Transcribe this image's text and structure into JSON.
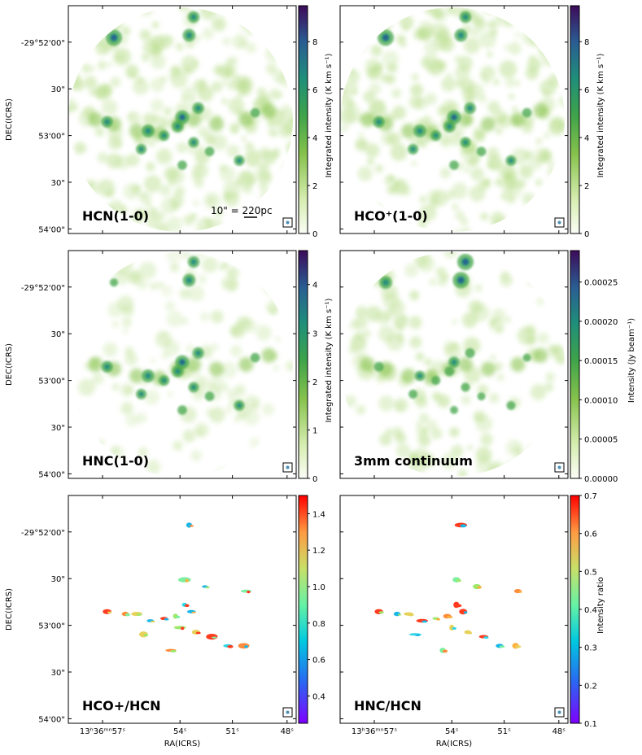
{
  "chart_data": [
    {
      "type": "heatmap",
      "panel_label": "HCN(1-0)",
      "scalebar_label": "10\" = 220pc",
      "colormap": "green-blue-purple",
      "colorbar": {
        "label": "Integrated intensity (K km s⁻¹)",
        "range": [
          0,
          9.5
        ],
        "ticks": [
          "0",
          "2",
          "4",
          "6",
          "8"
        ],
        "tick_values": [
          0,
          2,
          4,
          6,
          8
        ]
      },
      "y_ticks": [
        "-29°52'00\"",
        "30\"",
        "53'00\"",
        "30\"",
        "54'00\""
      ],
      "ylabel": "DEC(ICRS)",
      "x_ticks": [],
      "xlabel": ""
    },
    {
      "type": "heatmap",
      "panel_label": "HCO⁺(1-0)",
      "colormap": "green-blue-purple",
      "colorbar": {
        "label": "Integrated intensity (K km s⁻¹)",
        "range": [
          0,
          9.5
        ],
        "ticks": [
          "0",
          "2",
          "4",
          "6",
          "8"
        ],
        "tick_values": [
          0,
          2,
          4,
          6,
          8
        ]
      },
      "y_ticks": [],
      "ylabel": "",
      "x_ticks": [],
      "xlabel": ""
    },
    {
      "type": "heatmap",
      "panel_label": "HNC(1-0)",
      "colormap": "green-blue-purple",
      "colorbar": {
        "label": "Integrated intensity (K km s⁻¹)",
        "range": [
          0,
          4.7
        ],
        "ticks": [
          "0",
          "1",
          "2",
          "3",
          "4"
        ],
        "tick_values": [
          0,
          1,
          2,
          3,
          4
        ]
      },
      "y_ticks": [
        "-29°52'00\"",
        "30\"",
        "53'00\"",
        "30\"",
        "54'00\""
      ],
      "ylabel": "DEC(ICRS)",
      "x_ticks": [],
      "xlabel": ""
    },
    {
      "type": "heatmap",
      "panel_label": "3mm continuum",
      "colormap": "green-blue-purple",
      "colorbar": {
        "label": "Intensity (Jy beam⁻¹)",
        "range": [
          0,
          0.00029
        ],
        "ticks": [
          "0.00000",
          "0.00005",
          "0.00010",
          "0.00015",
          "0.00020",
          "0.00025"
        ],
        "tick_values": [
          0,
          5e-05,
          0.0001,
          0.00015,
          0.0002,
          0.00025
        ]
      },
      "y_ticks": [],
      "ylabel": "",
      "x_ticks": [],
      "xlabel": ""
    },
    {
      "type": "heatmap",
      "panel_label": "HCO+/HCN",
      "colormap": "rainbow",
      "colorbar": {
        "label": "",
        "range": [
          0.25,
          1.5
        ],
        "ticks": [
          "0.4",
          "0.6",
          "0.8",
          "1.0",
          "1.2",
          "1.4"
        ],
        "tick_values": [
          0.4,
          0.6,
          0.8,
          1.0,
          1.2,
          1.4
        ]
      },
      "y_ticks": [
        "-29°52'00\"",
        "30\"",
        "53'00\"",
        "30\"",
        "54'00\""
      ],
      "ylabel": "DEC(ICRS)",
      "x_ticks": [
        "13ʰ36ᵐⁿ57ˢ",
        "54ˢ",
        "51ˢ",
        "48ˢ"
      ],
      "xlabel": "RA(ICRS)"
    },
    {
      "type": "heatmap",
      "panel_label": "HNC/HCN",
      "colormap": "rainbow",
      "colorbar": {
        "label": "Intensity ratio",
        "range": [
          0.1,
          0.7
        ],
        "ticks": [
          "0.1",
          "0.2",
          "0.3",
          "0.4",
          "0.5",
          "0.6",
          "0.7"
        ],
        "tick_values": [
          0.1,
          0.2,
          0.3,
          0.4,
          0.5,
          0.6,
          0.7
        ]
      },
      "y_ticks": [],
      "ylabel": "",
      "x_ticks": [
        "13ʰ36ᵐⁿ57ˢ",
        "54ˢ",
        "51ˢ",
        "48ˢ"
      ],
      "xlabel": "RA(ICRS)"
    }
  ]
}
